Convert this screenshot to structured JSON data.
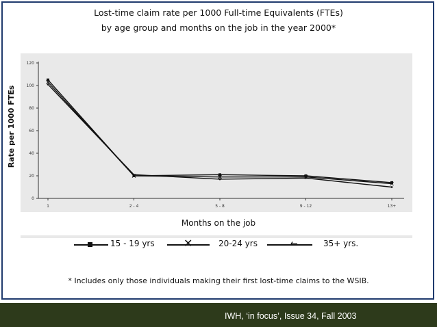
{
  "title_line1": "Lost-time claim rate per 1000 Full-time Equivalents (FTEs)",
  "title_line2": "by age group and months on the job in the year 2000*",
  "legend": {
    "s1": "15 - 19 yrs",
    "s2": "20-24 yrs",
    "s3": "35+ yrs."
  },
  "footnote": "* Includes only those individuals making their first lost-time claims to the WSIB.",
  "source": "IWH, ‘in focus’, Issue 34, Fall 2003",
  "colors": {
    "frame": "#1f3a6d",
    "plot_background": "#e9e9e9",
    "series": "#111111",
    "footer": "#2d3a1b"
  },
  "chart_data": {
    "type": "line",
    "title": "Lost-time claim rate per 1000 Full-time Equivalents (FTEs) by age group and months on the job in the year 2000*",
    "xlabel": "Months on the job",
    "ylabel": "Rate per 1000 FTEs",
    "categories": [
      "1",
      "2 - 4",
      "5 - 8",
      "9 - 12",
      "13+"
    ],
    "ylim": [
      0,
      120
    ],
    "yticks": [
      0,
      20,
      40,
      60,
      80,
      100,
      120
    ],
    "grid": false,
    "legend_position": "bottom",
    "series": [
      {
        "name": "15 - 19 yrs",
        "marker": "square",
        "values": [
          105,
          20,
          21,
          20,
          14
        ]
      },
      {
        "name": "20-24 yrs",
        "marker": "x",
        "values": [
          103,
          20,
          19,
          19,
          13
        ]
      },
      {
        "name": "35+ yrs.",
        "marker": "arrow",
        "values": [
          101,
          21,
          17,
          18,
          10
        ]
      }
    ]
  }
}
